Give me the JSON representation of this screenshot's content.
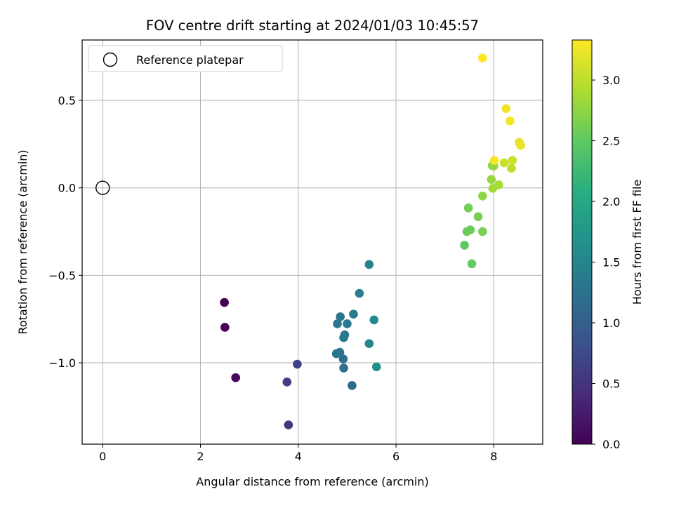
{
  "chart_data": {
    "type": "scatter",
    "title": "FOV centre drift starting at 2024/01/03 10:45:57",
    "xlabel": "Angular distance from reference (arcmin)",
    "ylabel": "Rotation from reference (arcmin)",
    "xlim": [
      -0.42,
      9.0
    ],
    "ylim": [
      -1.465,
      0.845
    ],
    "xticks": [
      0,
      2,
      4,
      6,
      8
    ],
    "xtick_labels": [
      "0",
      "2",
      "4",
      "6",
      "8"
    ],
    "yticks": [
      -1.0,
      -0.5,
      0.0,
      0.5
    ],
    "ytick_labels": [
      "−1.0",
      "−0.5",
      "0.0",
      "0.5"
    ],
    "grid": true,
    "legend": {
      "position": "top-left",
      "entries": [
        {
          "label": "Reference platepar",
          "marker": "open-circle",
          "x": 0.0,
          "y": 0.0
        }
      ]
    },
    "colorbar": {
      "label": "Hours from first FF file",
      "colormap": "viridis",
      "range": [
        0.0,
        3.33
      ],
      "ticks": [
        0.0,
        0.5,
        1.0,
        1.5,
        2.0,
        2.5,
        3.0
      ],
      "tick_labels": [
        "0.0",
        "0.5",
        "1.0",
        "1.5",
        "2.0",
        "2.5",
        "3.0"
      ]
    },
    "points": [
      {
        "x": 2.49,
        "y": -0.655,
        "hours": 0.0
      },
      {
        "x": 2.5,
        "y": -0.797,
        "hours": 0.02
      },
      {
        "x": 2.72,
        "y": -1.085,
        "hours": 0.06
      },
      {
        "x": 3.8,
        "y": -1.355,
        "hours": 0.55
      },
      {
        "x": 3.77,
        "y": -1.11,
        "hours": 0.6
      },
      {
        "x": 3.98,
        "y": -1.008,
        "hours": 0.65
      },
      {
        "x": 5.1,
        "y": -1.13,
        "hours": 1.15
      },
      {
        "x": 4.93,
        "y": -1.03,
        "hours": 1.2
      },
      {
        "x": 4.92,
        "y": -0.978,
        "hours": 1.22
      },
      {
        "x": 4.85,
        "y": -0.94,
        "hours": 1.25
      },
      {
        "x": 4.78,
        "y": -0.948,
        "hours": 1.27
      },
      {
        "x": 4.8,
        "y": -0.777,
        "hours": 1.3
      },
      {
        "x": 4.86,
        "y": -0.737,
        "hours": 1.3
      },
      {
        "x": 4.95,
        "y": -0.84,
        "hours": 1.33
      },
      {
        "x": 4.93,
        "y": -0.856,
        "hours": 1.35
      },
      {
        "x": 5.0,
        "y": -0.777,
        "hours": 1.35
      },
      {
        "x": 5.13,
        "y": -0.722,
        "hours": 1.38
      },
      {
        "x": 5.25,
        "y": -0.603,
        "hours": 1.4
      },
      {
        "x": 5.45,
        "y": -0.438,
        "hours": 1.45
      },
      {
        "x": 5.45,
        "y": -0.89,
        "hours": 1.55
      },
      {
        "x": 5.55,
        "y": -0.755,
        "hours": 1.6
      },
      {
        "x": 5.6,
        "y": -1.023,
        "hours": 1.62
      },
      {
        "x": 7.4,
        "y": -0.328,
        "hours": 2.5
      },
      {
        "x": 7.55,
        "y": -0.434,
        "hours": 2.52
      },
      {
        "x": 7.45,
        "y": -0.25,
        "hours": 2.55
      },
      {
        "x": 7.52,
        "y": -0.24,
        "hours": 2.57
      },
      {
        "x": 7.48,
        "y": -0.115,
        "hours": 2.6
      },
      {
        "x": 7.68,
        "y": -0.165,
        "hours": 2.62
      },
      {
        "x": 7.77,
        "y": -0.25,
        "hours": 2.65
      },
      {
        "x": 7.77,
        "y": -0.047,
        "hours": 2.75
      },
      {
        "x": 7.97,
        "y": 0.127,
        "hours": 2.68
      },
      {
        "x": 7.95,
        "y": 0.048,
        "hours": 2.8
      },
      {
        "x": 8.0,
        "y": 0.125,
        "hours": 2.8
      },
      {
        "x": 7.98,
        "y": -0.003,
        "hours": 2.85
      },
      {
        "x": 8.1,
        "y": 0.017,
        "hours": 2.9
      },
      {
        "x": 8.36,
        "y": 0.112,
        "hours": 3.0
      },
      {
        "x": 8.21,
        "y": 0.143,
        "hours": 3.05
      },
      {
        "x": 8.38,
        "y": 0.157,
        "hours": 3.07
      },
      {
        "x": 8.52,
        "y": 0.26,
        "hours": 3.2
      },
      {
        "x": 8.55,
        "y": 0.243,
        "hours": 3.22
      },
      {
        "x": 8.01,
        "y": 0.157,
        "hours": 3.3
      },
      {
        "x": 8.25,
        "y": 0.453,
        "hours": 3.25
      },
      {
        "x": 8.33,
        "y": 0.382,
        "hours": 3.28
      },
      {
        "x": 7.77,
        "y": 0.742,
        "hours": 3.33
      }
    ]
  }
}
